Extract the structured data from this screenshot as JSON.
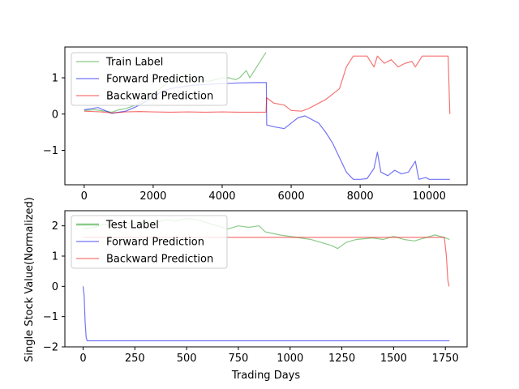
{
  "figure": {
    "ylabel": "Single Stock Value(Normalized)",
    "xlabel": "Trading Days"
  },
  "chart_data": [
    {
      "type": "line",
      "xlim": [
        -560,
        11100
      ],
      "ylim": [
        -1.95,
        1.85
      ],
      "xticks": [
        0,
        2000,
        4000,
        6000,
        8000,
        10000
      ],
      "yticks": [
        -1,
        0,
        1
      ],
      "xtick_labels": [
        "0",
        "2000",
        "4000",
        "6000",
        "8000",
        "10000"
      ],
      "ytick_labels": [
        "−1",
        "0",
        "1"
      ],
      "legend_position": "upper-left",
      "series": [
        {
          "name": "Train Label",
          "color": "#2ca02c",
          "points": [
            [
              0,
              0.1
            ],
            [
              300,
              0.12
            ],
            [
              600,
              0.08
            ],
            [
              800,
              0.05
            ],
            [
              1000,
              0.12
            ],
            [
              1200,
              0.15
            ],
            [
              1500,
              0.25
            ],
            [
              1800,
              0.4
            ],
            [
              2000,
              0.55
            ],
            [
              2200,
              0.7
            ],
            [
              2400,
              0.85
            ],
            [
              2600,
              1.0
            ],
            [
              2800,
              1.05
            ],
            [
              3000,
              1.0
            ],
            [
              3200,
              1.05
            ],
            [
              3400,
              0.95
            ],
            [
              3600,
              0.9
            ],
            [
              3800,
              0.95
            ],
            [
              4000,
              1.0
            ],
            [
              4200,
              1.0
            ],
            [
              4400,
              0.95
            ],
            [
              4500,
              1.0
            ],
            [
              4600,
              1.1
            ],
            [
              4700,
              1.2
            ],
            [
              4800,
              1.0
            ],
            [
              4900,
              1.15
            ],
            [
              5000,
              1.3
            ],
            [
              5100,
              1.45
            ],
            [
              5200,
              1.6
            ],
            [
              5270,
              1.7
            ]
          ]
        },
        {
          "name": "Forward Prediction",
          "color": "#0000ee",
          "points": [
            [
              0,
              0.12
            ],
            [
              200,
              0.15
            ],
            [
              400,
              0.18
            ],
            [
              600,
              0.1
            ],
            [
              800,
              0.02
            ],
            [
              1000,
              0.05
            ],
            [
              1200,
              0.08
            ],
            [
              1500,
              0.2
            ],
            [
              1800,
              0.35
            ],
            [
              2000,
              0.45
            ],
            [
              2200,
              0.6
            ],
            [
              2500,
              0.7
            ],
            [
              2800,
              0.75
            ],
            [
              3200,
              0.8
            ],
            [
              3600,
              0.82
            ],
            [
              4000,
              0.84
            ],
            [
              4500,
              0.86
            ],
            [
              5000,
              0.87
            ],
            [
              5280,
              0.87
            ],
            [
              5290,
              -0.3
            ],
            [
              5500,
              -0.35
            ],
            [
              5800,
              -0.4
            ],
            [
              6000,
              -0.25
            ],
            [
              6200,
              -0.1
            ],
            [
              6400,
              -0.05
            ],
            [
              6600,
              -0.15
            ],
            [
              6800,
              -0.25
            ],
            [
              7000,
              -0.5
            ],
            [
              7200,
              -0.8
            ],
            [
              7400,
              -1.2
            ],
            [
              7600,
              -1.6
            ],
            [
              7800,
              -1.8
            ],
            [
              8000,
              -1.8
            ],
            [
              8200,
              -1.78
            ],
            [
              8400,
              -1.5
            ],
            [
              8500,
              -1.05
            ],
            [
              8600,
              -1.6
            ],
            [
              8800,
              -1.7
            ],
            [
              9000,
              -1.55
            ],
            [
              9200,
              -1.65
            ],
            [
              9400,
              -1.6
            ],
            [
              9600,
              -1.3
            ],
            [
              9700,
              -1.8
            ],
            [
              9900,
              -1.75
            ],
            [
              10000,
              -1.8
            ],
            [
              10300,
              -1.8
            ],
            [
              10600,
              -1.8
            ]
          ]
        },
        {
          "name": "Backward Prediction",
          "color": "#ee0000",
          "points": [
            [
              0,
              0.08
            ],
            [
              500,
              0.06
            ],
            [
              800,
              0.03
            ],
            [
              1200,
              0.06
            ],
            [
              1600,
              0.07
            ],
            [
              2000,
              0.06
            ],
            [
              2500,
              0.05
            ],
            [
              3000,
              0.06
            ],
            [
              3500,
              0.05
            ],
            [
              4000,
              0.06
            ],
            [
              4500,
              0.05
            ],
            [
              5000,
              0.05
            ],
            [
              5270,
              0.05
            ],
            [
              5290,
              0.45
            ],
            [
              5500,
              0.3
            ],
            [
              5800,
              0.25
            ],
            [
              6000,
              0.1
            ],
            [
              6300,
              0.08
            ],
            [
              6500,
              0.15
            ],
            [
              6800,
              0.3
            ],
            [
              7000,
              0.4
            ],
            [
              7200,
              0.55
            ],
            [
              7400,
              0.7
            ],
            [
              7600,
              1.3
            ],
            [
              7800,
              1.6
            ],
            [
              8000,
              1.6
            ],
            [
              8200,
              1.6
            ],
            [
              8400,
              1.3
            ],
            [
              8500,
              1.6
            ],
            [
              8700,
              1.4
            ],
            [
              8900,
              1.5
            ],
            [
              9100,
              1.3
            ],
            [
              9300,
              1.4
            ],
            [
              9500,
              1.45
            ],
            [
              9600,
              1.3
            ],
            [
              9800,
              1.6
            ],
            [
              10000,
              1.6
            ],
            [
              10300,
              1.6
            ],
            [
              10550,
              1.6
            ],
            [
              10600,
              0.0
            ]
          ]
        }
      ]
    },
    {
      "type": "line",
      "xlim": [
        -88,
        1855
      ],
      "ylim": [
        -2.0,
        2.5
      ],
      "xticks": [
        0,
        250,
        500,
        750,
        1000,
        1250,
        1500,
        1750
      ],
      "yticks": [
        -2,
        -1,
        0,
        1,
        2
      ],
      "xtick_labels": [
        "0",
        "250",
        "500",
        "750",
        "1000",
        "1250",
        "1500",
        "1750"
      ],
      "ytick_labels": [
        "−2",
        "−1",
        "0",
        "1",
        "2"
      ],
      "legend_position": "upper-left",
      "series": [
        {
          "name": "Test Label",
          "color": "#2ca02c",
          "points": [
            [
              0,
              1.9
            ],
            [
              50,
              1.95
            ],
            [
              100,
              2.05
            ],
            [
              150,
              2.0
            ],
            [
              200,
              2.1
            ],
            [
              250,
              2.05
            ],
            [
              300,
              2.15
            ],
            [
              350,
              2.1
            ],
            [
              400,
              2.2
            ],
            [
              450,
              2.15
            ],
            [
              500,
              2.25
            ],
            [
              550,
              2.2
            ],
            [
              600,
              2.1
            ],
            [
              650,
              2.0
            ],
            [
              700,
              1.9
            ],
            [
              750,
              2.0
            ],
            [
              800,
              1.95
            ],
            [
              850,
              2.0
            ],
            [
              880,
              1.8
            ],
            [
              950,
              1.7
            ],
            [
              1000,
              1.65
            ],
            [
              1050,
              1.6
            ],
            [
              1100,
              1.55
            ],
            [
              1150,
              1.45
            ],
            [
              1200,
              1.35
            ],
            [
              1230,
              1.25
            ],
            [
              1270,
              1.45
            ],
            [
              1320,
              1.55
            ],
            [
              1400,
              1.6
            ],
            [
              1450,
              1.55
            ],
            [
              1500,
              1.65
            ],
            [
              1550,
              1.55
            ],
            [
              1600,
              1.5
            ],
            [
              1650,
              1.6
            ],
            [
              1700,
              1.7
            ],
            [
              1750,
              1.6
            ],
            [
              1770,
              1.55
            ]
          ]
        },
        {
          "name": "Forward Prediction",
          "color": "#0000ee",
          "points": [
            [
              0,
              0.0
            ],
            [
              5,
              -0.3
            ],
            [
              10,
              -1.2
            ],
            [
              15,
              -1.7
            ],
            [
              20,
              -1.8
            ],
            [
              200,
              -1.8
            ],
            [
              600,
              -1.8
            ],
            [
              1000,
              -1.8
            ],
            [
              1400,
              -1.8
            ],
            [
              1770,
              -1.8
            ]
          ]
        },
        {
          "name": "Backward Prediction",
          "color": "#ee0000",
          "points": [
            [
              0,
              1.62
            ],
            [
              300,
              1.62
            ],
            [
              600,
              1.62
            ],
            [
              900,
              1.62
            ],
            [
              1200,
              1.62
            ],
            [
              1500,
              1.62
            ],
            [
              1745,
              1.62
            ],
            [
              1755,
              1.0
            ],
            [
              1762,
              0.2
            ],
            [
              1768,
              0.0
            ]
          ]
        }
      ]
    }
  ]
}
